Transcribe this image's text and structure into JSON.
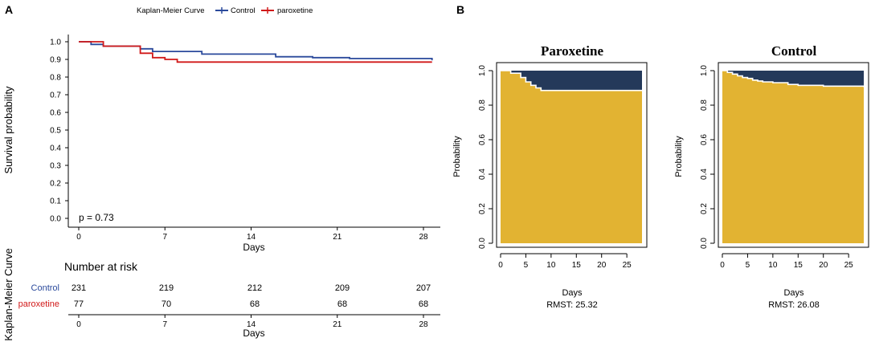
{
  "colors": {
    "control": "#2b4a9c",
    "paroxetine": "#d11919",
    "rmst_fill": "#e2b332",
    "rmst_top": "#24395a"
  },
  "panel_a": {
    "label": "A",
    "legend_title": "Kaplan-Meier Curve",
    "legend_control": "Control",
    "legend_paroxetine": "paroxetine",
    "ylabel": "Survival probability",
    "xlabel": "Days",
    "p_value": "p = 0.73",
    "side_label": "Kaplan-Meier Curve",
    "risk_title": "Number at risk",
    "risk_xlabel": "Days",
    "risk_rows": [
      {
        "label": "Control",
        "counts": [
          "231",
          "219",
          "212",
          "209",
          "207"
        ]
      },
      {
        "label": "paroxetine",
        "counts": [
          "77",
          "70",
          "68",
          "68",
          "68"
        ]
      }
    ]
  },
  "panel_b": {
    "label": "B",
    "plots": [
      {
        "title": "Paroxetine",
        "ylabel": "Probability",
        "xlabel": "Days",
        "rmst": "RMST: 25.32"
      },
      {
        "title": "Control",
        "ylabel": "Probability",
        "xlabel": "Days",
        "rmst": "RMST: 26.08"
      }
    ]
  },
  "chart_data": [
    {
      "type": "line",
      "title": "Kaplan-Meier Curve",
      "xlabel": "Days",
      "ylabel": "Survival probability",
      "xlim": [
        0,
        29
      ],
      "ylim": [
        0,
        1.0
      ],
      "xticks": [
        0,
        7,
        14,
        21,
        28
      ],
      "yticks": [
        0.0,
        0.1,
        0.2,
        0.3,
        0.4,
        0.5,
        0.6,
        0.7,
        0.8,
        0.9,
        1.0
      ],
      "ytick_labels": [
        "0.0",
        "0.1",
        "0.2",
        "0.3",
        "0.4",
        "0.5",
        "0.6",
        "0.7",
        "0.8",
        "0.9",
        "1.0"
      ],
      "series": [
        {
          "name": "Control",
          "x": [
            0,
            1,
            2,
            5,
            6,
            10,
            16,
            19,
            22,
            29
          ],
          "y": [
            1.0,
            0.985,
            0.975,
            0.96,
            0.945,
            0.93,
            0.915,
            0.91,
            0.905,
            0.895
          ]
        },
        {
          "name": "paroxetine",
          "x": [
            0,
            2,
            5,
            6,
            7,
            8,
            29
          ],
          "y": [
            1.0,
            0.975,
            0.935,
            0.91,
            0.9,
            0.885,
            0.885
          ]
        }
      ],
      "annotation": "p = 0.73"
    },
    {
      "type": "area",
      "title": "Paroxetine",
      "xlabel": "Days",
      "ylabel": "Probability",
      "xlim": [
        0,
        28
      ],
      "ylim": [
        0,
        1.0
      ],
      "xticks": [
        0,
        5,
        10,
        15,
        20,
        25
      ],
      "yticks": [
        0.0,
        0.2,
        0.4,
        0.6,
        0.8,
        1.0
      ],
      "ytick_labels": [
        "0.0",
        "0.2",
        "0.4",
        "0.6",
        "0.8",
        "1.0"
      ],
      "x": [
        0,
        2,
        4,
        5,
        6,
        7,
        8,
        28
      ],
      "y": [
        1.0,
        0.985,
        0.96,
        0.935,
        0.915,
        0.9,
        0.885,
        0.885
      ],
      "annotation": "RMST: 25.32"
    },
    {
      "type": "area",
      "title": "Control",
      "xlabel": "Days",
      "ylabel": "Probability",
      "xlim": [
        0,
        28
      ],
      "ylim": [
        0,
        1.0
      ],
      "xticks": [
        0,
        5,
        10,
        15,
        20,
        25
      ],
      "yticks": [
        0.0,
        0.2,
        0.4,
        0.6,
        0.8,
        1.0
      ],
      "ytick_labels": [
        "0.0",
        "0.2",
        "0.4",
        "0.6",
        "0.8",
        "1.0"
      ],
      "x": [
        0,
        1,
        2,
        3,
        4,
        5,
        6,
        7,
        8,
        10,
        13,
        15,
        20,
        28
      ],
      "y": [
        1.0,
        0.99,
        0.98,
        0.97,
        0.96,
        0.955,
        0.945,
        0.94,
        0.935,
        0.93,
        0.92,
        0.915,
        0.91,
        0.905
      ],
      "annotation": "RMST: 26.08"
    }
  ]
}
